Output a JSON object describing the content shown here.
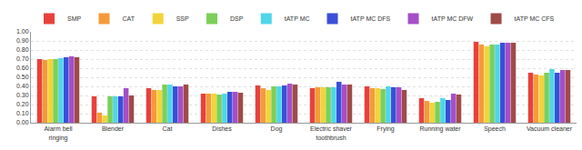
{
  "chart_data": {
    "type": "bar",
    "categories": [
      "Alarm bell ringing",
      "Blender",
      "Cat",
      "Dishes",
      "Dog",
      "Electric shaver toothbrush",
      "Frying",
      "Running water",
      "Speech",
      "Vacuum cleaner"
    ],
    "series": [
      {
        "name": "SMP",
        "color": "#e8413c",
        "values": [
          0.7,
          0.29,
          0.38,
          0.32,
          0.41,
          0.38,
          0.4,
          0.27,
          0.89,
          0.55
        ]
      },
      {
        "name": "CAT",
        "color": "#f59a3a",
        "values": [
          0.69,
          0.11,
          0.36,
          0.32,
          0.38,
          0.39,
          0.38,
          0.24,
          0.86,
          0.53
        ]
      },
      {
        "name": "SSP",
        "color": "#f2d43a",
        "values": [
          0.7,
          0.08,
          0.36,
          0.32,
          0.36,
          0.39,
          0.38,
          0.22,
          0.84,
          0.52
        ]
      },
      {
        "name": "DSP",
        "color": "#7ccf5a",
        "values": [
          0.7,
          0.29,
          0.42,
          0.31,
          0.4,
          0.39,
          0.37,
          0.23,
          0.86,
          0.55
        ]
      },
      {
        "name": "tATP MC",
        "color": "#4fd6e8",
        "values": [
          0.71,
          0.29,
          0.42,
          0.32,
          0.4,
          0.39,
          0.4,
          0.27,
          0.86,
          0.59
        ]
      },
      {
        "name": "tATP MC DFS",
        "color": "#3a4fd8",
        "values": [
          0.72,
          0.29,
          0.4,
          0.34,
          0.41,
          0.45,
          0.39,
          0.25,
          0.88,
          0.55
        ]
      },
      {
        "name": "tATP MC DFW",
        "color": "#a54fc8",
        "values": [
          0.73,
          0.38,
          0.4,
          0.34,
          0.43,
          0.42,
          0.39,
          0.32,
          0.88,
          0.58
        ]
      },
      {
        "name": "tATP MC CFS",
        "color": "#a04a4a",
        "values": [
          0.72,
          0.3,
          0.42,
          0.33,
          0.42,
          0.42,
          0.36,
          0.31,
          0.88,
          0.58
        ]
      }
    ],
    "ylim": [
      0,
      1.0
    ],
    "yticks": [
      {
        "value": 0,
        "label": "0.00"
      },
      {
        "value": 0.1,
        "label": "0.10"
      },
      {
        "value": 0.2,
        "label": "0.20"
      },
      {
        "value": 0.3,
        "label": "0.30"
      },
      {
        "value": 0.4,
        "label": "0.40"
      },
      {
        "value": 0.5,
        "label": "0.50"
      },
      {
        "value": 0.6,
        "label": "0.60"
      },
      {
        "value": 0.7,
        "label": "0.70"
      },
      {
        "value": 0.8,
        "label": "0.80"
      },
      {
        "value": 0.9,
        "label": "0.90"
      },
      {
        "value": 1.0,
        "label": "1.00"
      }
    ],
    "grid": true,
    "legend": "top left"
  }
}
